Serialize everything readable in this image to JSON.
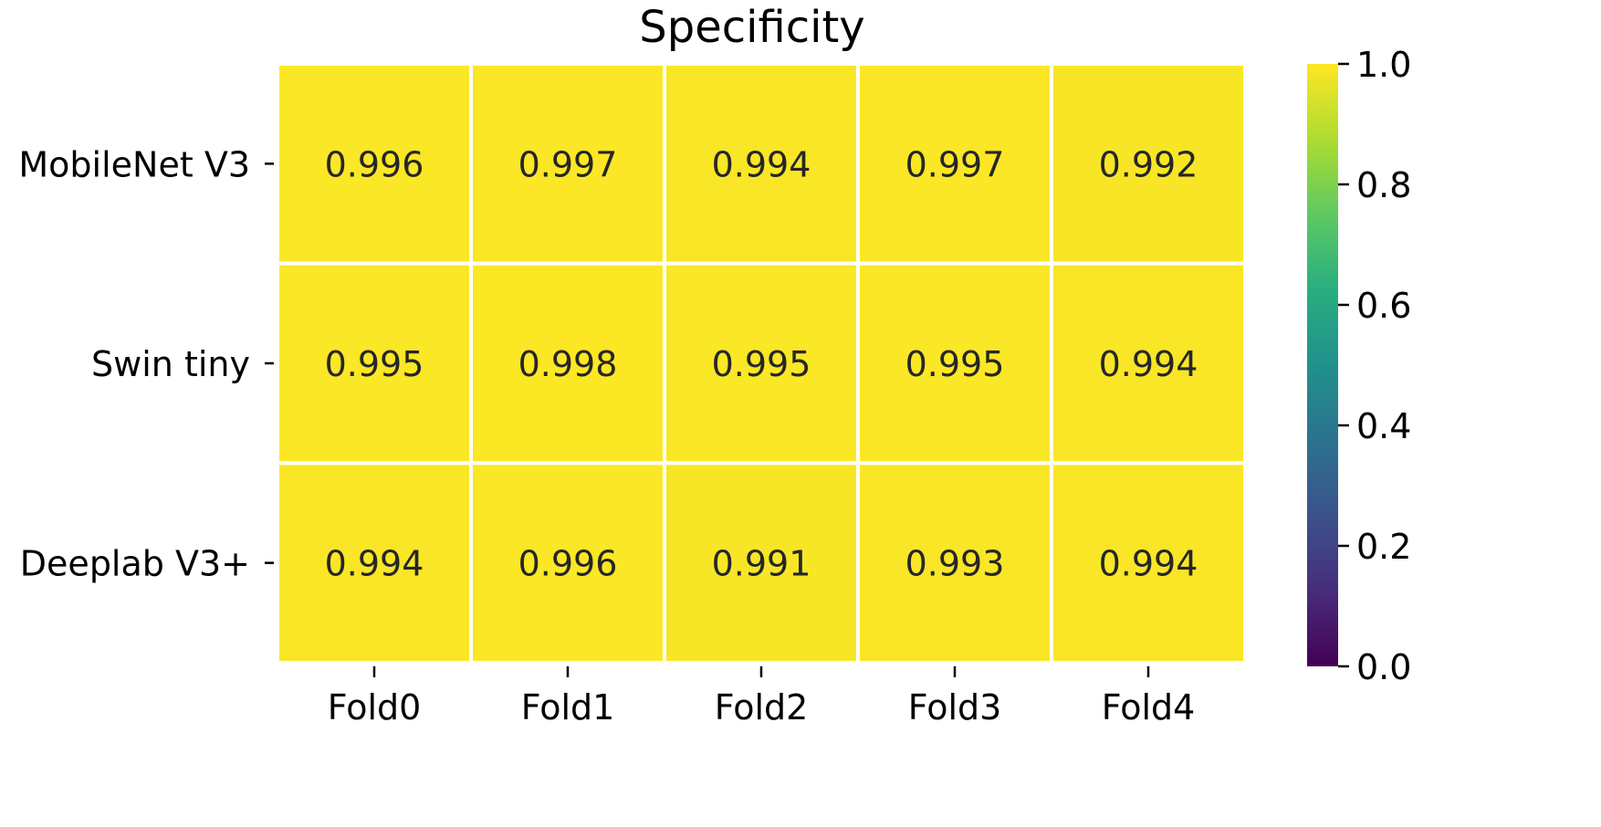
{
  "chart_data": {
    "type": "heatmap",
    "title": "Specificity",
    "columns": [
      "Fold0",
      "Fold1",
      "Fold2",
      "Fold3",
      "Fold4"
    ],
    "rows": [
      "MobileNet V3",
      "Swin tiny",
      "Deeplab V3+"
    ],
    "values": [
      [
        0.996,
        0.997,
        0.994,
        0.997,
        0.992
      ],
      [
        0.995,
        0.998,
        0.995,
        0.995,
        0.994
      ],
      [
        0.994,
        0.996,
        0.991,
        0.993,
        0.994
      ]
    ],
    "value_labels": [
      [
        "0.996",
        "0.997",
        "0.994",
        "0.997",
        "0.992"
      ],
      [
        "0.995",
        "0.998",
        "0.995",
        "0.995",
        "0.994"
      ],
      [
        "0.994",
        "0.996",
        "0.991",
        "0.993",
        "0.994"
      ]
    ],
    "colormap": "viridis",
    "colorbar": {
      "range": [
        0.0,
        1.0
      ],
      "ticks": [
        "0.0",
        "0.2",
        "0.4",
        "0.6",
        "0.8",
        "1.0"
      ],
      "tick_values": [
        0.0,
        0.2,
        0.4,
        0.6,
        0.8,
        1.0
      ]
    },
    "cell_text_color": "#262626",
    "cell_border_color": "#ffffff"
  }
}
